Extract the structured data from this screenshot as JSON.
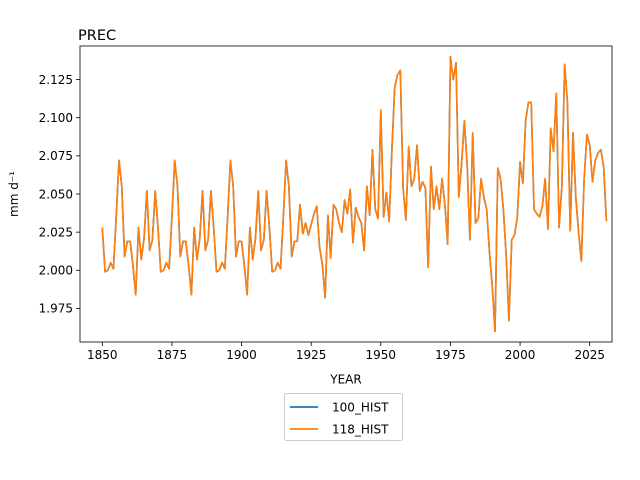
{
  "chart_data": {
    "type": "line",
    "title": "PREC",
    "xlabel": "YEAR",
    "ylabel": "mm d⁻¹",
    "xlim": [
      1842,
      2033
    ],
    "ylim": [
      1.953,
      2.147
    ],
    "xticks": [
      1850,
      1875,
      1900,
      1925,
      1950,
      1975,
      2000,
      2025
    ],
    "yticks": [
      1.975,
      2.0,
      2.025,
      2.05,
      2.075,
      2.1,
      2.125
    ],
    "ytick_labels": [
      "1.975",
      "2.000",
      "2.025",
      "2.050",
      "2.075",
      "2.100",
      "2.125"
    ],
    "grid": false,
    "legend": {
      "placement": "below-center",
      "entries": [
        "100_HIST",
        "118_HIST"
      ]
    },
    "series": [
      {
        "name": "100_HIST",
        "color": "#1f77b4",
        "same_as": "118_HIST"
      },
      {
        "name": "118_HIST",
        "color": "#ff7f0e",
        "x_start": 1850,
        "x_step": 1,
        "values": [
          2.028,
          1.999,
          2.0,
          2.005,
          2.001,
          2.035,
          2.072,
          2.055,
          2.009,
          2.019,
          2.019,
          2.003,
          1.984,
          2.028,
          2.007,
          2.021,
          2.052,
          2.013,
          2.02,
          2.052,
          2.028,
          1.999,
          2.0,
          2.005,
          2.001,
          2.035,
          2.072,
          2.055,
          2.009,
          2.019,
          2.019,
          2.003,
          1.984,
          2.028,
          2.007,
          2.021,
          2.052,
          2.013,
          2.02,
          2.052,
          2.028,
          1.999,
          2.0,
          2.005,
          2.001,
          2.035,
          2.072,
          2.055,
          2.009,
          2.019,
          2.019,
          2.003,
          1.984,
          2.028,
          2.007,
          2.021,
          2.052,
          2.013,
          2.02,
          2.052,
          2.028,
          1.999,
          2.0,
          2.005,
          2.001,
          2.035,
          2.072,
          2.055,
          2.009,
          2.019,
          2.019,
          2.043,
          2.024,
          2.031,
          2.023,
          2.03,
          2.037,
          2.042,
          2.015,
          2.004,
          1.982,
          2.036,
          2.008,
          2.043,
          2.04,
          2.031,
          2.025,
          2.046,
          2.037,
          2.053,
          2.018,
          2.041,
          2.035,
          2.031,
          2.013,
          2.055,
          2.036,
          2.079,
          2.04,
          2.034,
          2.105,
          2.035,
          2.051,
          2.032,
          2.08,
          2.12,
          2.128,
          2.131,
          2.054,
          2.033,
          2.081,
          2.055,
          2.06,
          2.082,
          2.052,
          2.058,
          2.054,
          2.002,
          2.068,
          2.04,
          2.055,
          2.04,
          2.06,
          2.043,
          2.017,
          2.14,
          2.125,
          2.136,
          2.048,
          2.07,
          2.098,
          2.069,
          2.02,
          2.09,
          2.031,
          2.034,
          2.06,
          2.048,
          2.04,
          2.012,
          1.99,
          1.96,
          2.067,
          2.06,
          2.04,
          2.01,
          1.967,
          2.02,
          2.023,
          2.035,
          2.071,
          2.057,
          2.098,
          2.11,
          2.11,
          2.04,
          2.037,
          2.035,
          2.042,
          2.06,
          2.027,
          2.093,
          2.078,
          2.116,
          2.028,
          2.055,
          2.135,
          2.11,
          2.026,
          2.09,
          2.048,
          2.025,
          2.006,
          2.06,
          2.089,
          2.082,
          2.058,
          2.072,
          2.077,
          2.079,
          2.068,
          2.032
        ]
      }
    ]
  }
}
